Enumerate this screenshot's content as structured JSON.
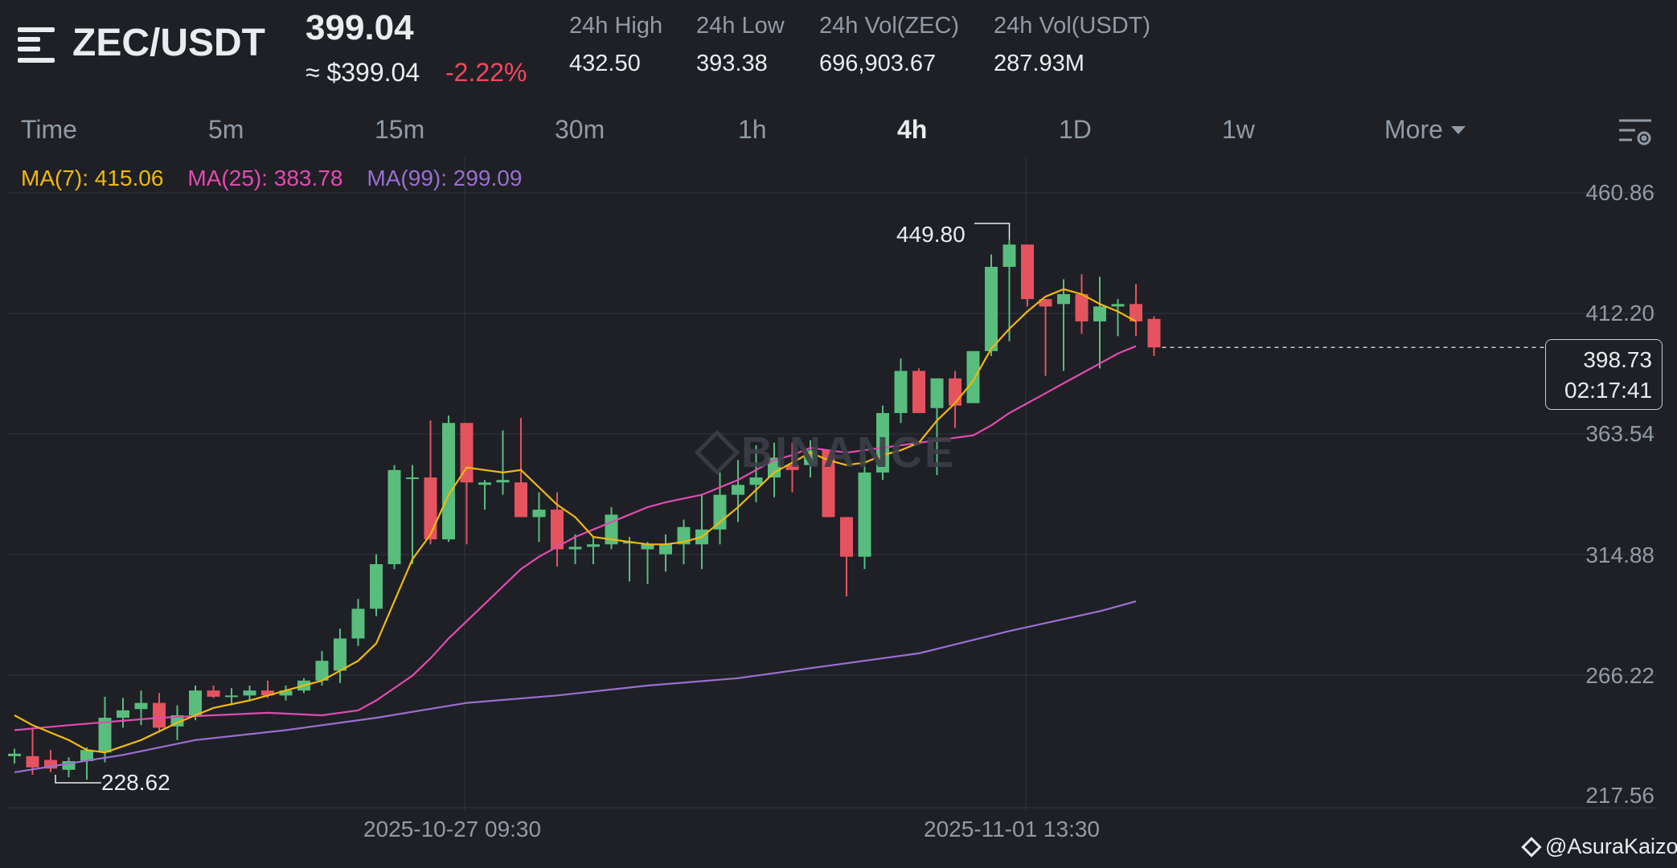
{
  "header": {
    "pair": "ZEC/USDT",
    "last_price": "399.04",
    "usd_price": "≈ $399.04",
    "change": "-2.22%",
    "stats": [
      {
        "label": "24h High",
        "value": "432.50"
      },
      {
        "label": "24h Low",
        "value": "393.38"
      },
      {
        "label": "24h Vol(ZEC)",
        "value": "696,903.67"
      },
      {
        "label": "24h Vol(USDT)",
        "value": "287.93M"
      }
    ]
  },
  "intervals": [
    "Time",
    "5m",
    "15m",
    "30m",
    "1h",
    "4h",
    "1D",
    "1w"
  ],
  "active_interval": "4h",
  "more_label": "More",
  "indicators": {
    "ma7": "MA(7): 415.06",
    "ma25": "MA(25): 383.78",
    "ma99": "MA(99): 299.09"
  },
  "price_axis": [
    "460.86",
    "412.20",
    "363.54",
    "314.88",
    "266.22",
    "217.56"
  ],
  "time_axis": [
    "2025-10-27 09:30",
    "2025-11-01 13:30"
  ],
  "last_marker": {
    "price": "398.73",
    "countdown": "02:17:41"
  },
  "high_label": "449.80",
  "low_label": "228.62",
  "watermark": "BINANCE",
  "credit": "@AsuraKaizo",
  "colors": {
    "up": "#58bd7d",
    "down": "#e5535f",
    "ma7": "#f0b90b",
    "ma25": "#e24bb0",
    "ma99": "#9a6fd1",
    "background": "#1e2026"
  },
  "chart_data": {
    "type": "candlestick",
    "interval": "4h",
    "ylim": [
      217.56,
      460.86
    ],
    "candles": [
      [
        233.5,
        236.5,
        230.5,
        234.5
      ],
      [
        233.5,
        244.5,
        226.0,
        229.0
      ],
      [
        232.0,
        236.0,
        227.0,
        228.5
      ],
      [
        228.0,
        233.0,
        225.0,
        231.5
      ],
      [
        231.5,
        237.0,
        224.0,
        236.0
      ],
      [
        235.0,
        257.5,
        231.0,
        249.0
      ],
      [
        249.0,
        257.0,
        245.0,
        252.0
      ],
      [
        252.5,
        260.0,
        246.0,
        255.0
      ],
      [
        255.0,
        259.0,
        243.0,
        245.0
      ],
      [
        245.5,
        254.0,
        240.0,
        250.0
      ],
      [
        250.0,
        262.0,
        248.0,
        260.0
      ],
      [
        260.0,
        262.0,
        257.0,
        257.5
      ],
      [
        257.5,
        261.0,
        254.0,
        258.0
      ],
      [
        258.0,
        262.0,
        256.0,
        260.0
      ],
      [
        260.0,
        264.0,
        257.0,
        258.0
      ],
      [
        258.0,
        262.0,
        256.0,
        260.0
      ],
      [
        260.0,
        265.0,
        259.0,
        264.0
      ],
      [
        264.0,
        276.0,
        262.0,
        272.0
      ],
      [
        268.0,
        285.0,
        263.0,
        281.0
      ],
      [
        281.0,
        297.0,
        278.0,
        293.0
      ],
      [
        293.0,
        315.0,
        290.0,
        311.0
      ],
      [
        311.0,
        351.0,
        309.0,
        349.0
      ],
      [
        346.0,
        351.0,
        311.0,
        346.0
      ],
      [
        346.0,
        369.0,
        319.0,
        321.0
      ],
      [
        321.0,
        371.0,
        320.0,
        368.0
      ],
      [
        368.0,
        368.0,
        319.0,
        344.0
      ],
      [
        343.0,
        345.0,
        333.0,
        344.0
      ],
      [
        344.0,
        365.0,
        339.0,
        345.0
      ],
      [
        344.0,
        370.0,
        330.0,
        330.0
      ],
      [
        330.0,
        340.0,
        320.0,
        333.0
      ],
      [
        333.0,
        340.0,
        310.0,
        317.0
      ],
      [
        317.0,
        323.0,
        311.0,
        318.0
      ],
      [
        318.0,
        322.0,
        311.0,
        319.0
      ],
      [
        319.0,
        334.0,
        317.0,
        331.0
      ],
      [
        320.0,
        322.0,
        304.0,
        320.0
      ],
      [
        317.0,
        320.0,
        303.0,
        319.0
      ],
      [
        315.0,
        323.0,
        308.0,
        319.0
      ],
      [
        319.0,
        329.0,
        311.0,
        326.0
      ],
      [
        319.0,
        339.0,
        309.0,
        325.0
      ],
      [
        325.0,
        348.0,
        319.0,
        339.0
      ],
      [
        339.0,
        353.0,
        328.0,
        343.0
      ],
      [
        343.0,
        359.0,
        336.0,
        346.0
      ],
      [
        346.0,
        360.0,
        338.0,
        354.0
      ],
      [
        351.0,
        360.0,
        340.0,
        349.0
      ],
      [
        351.0,
        361.0,
        346.0,
        357.0
      ],
      [
        357.0,
        356.0,
        330.0,
        330.0
      ],
      [
        330.0,
        330.0,
        298.0,
        314.0
      ],
      [
        314.0,
        355.0,
        309.0,
        348.0
      ],
      [
        348.0,
        375.0,
        345.0,
        372.0
      ],
      [
        372.0,
        394.0,
        368.0,
        389.0
      ],
      [
        389.0,
        390.0,
        372.0,
        372.0
      ],
      [
        374.0,
        386.0,
        347.0,
        386.0
      ],
      [
        386.0,
        389.0,
        366.0,
        375.0
      ],
      [
        376.0,
        397.0,
        376.0,
        397.0
      ],
      [
        397.0,
        436.0,
        395.0,
        431.0
      ],
      [
        431.0,
        442.0,
        401.0,
        440.0
      ],
      [
        440.0,
        440.0,
        415.0,
        418.0
      ],
      [
        418.0,
        418.0,
        387.0,
        415.0
      ],
      [
        416.0,
        426.0,
        389.0,
        420.0
      ],
      [
        420.0,
        428.0,
        404.0,
        409.0
      ],
      [
        409.0,
        427.0,
        390.0,
        415.0
      ],
      [
        415.0,
        418.0,
        403.0,
        416.0
      ],
      [
        416.0,
        424.0,
        403.0,
        409.0
      ],
      [
        410.0,
        411.0,
        395.0,
        398.5
      ]
    ],
    "ma7": [
      [
        0,
        250
      ],
      [
        1,
        246
      ],
      [
        3,
        240
      ],
      [
        4,
        236
      ],
      [
        5,
        235
      ],
      [
        7,
        240
      ],
      [
        9,
        247
      ],
      [
        11,
        253
      ],
      [
        13,
        256
      ],
      [
        15,
        260
      ],
      [
        17,
        264
      ],
      [
        19,
        272
      ],
      [
        20,
        279
      ],
      [
        21,
        296
      ],
      [
        22,
        313
      ],
      [
        23,
        323
      ],
      [
        24,
        339
      ],
      [
        25,
        350
      ],
      [
        26,
        349
      ],
      [
        27,
        348
      ],
      [
        28,
        349
      ],
      [
        29,
        342
      ],
      [
        30,
        335
      ],
      [
        31,
        330
      ],
      [
        32,
        322
      ],
      [
        34,
        320
      ],
      [
        35,
        319
      ],
      [
        36,
        319
      ],
      [
        37,
        320
      ],
      [
        38,
        322
      ],
      [
        39,
        328
      ],
      [
        40,
        334
      ],
      [
        41,
        341
      ],
      [
        42,
        348
      ],
      [
        43,
        352
      ],
      [
        44,
        356
      ],
      [
        45,
        353
      ],
      [
        46,
        351
      ],
      [
        47,
        352
      ],
      [
        48,
        355
      ],
      [
        49,
        357
      ],
      [
        50,
        360
      ],
      [
        51,
        369
      ],
      [
        52,
        376
      ],
      [
        53,
        385
      ],
      [
        54,
        398
      ],
      [
        55,
        406
      ],
      [
        56,
        413
      ],
      [
        57,
        419
      ],
      [
        58,
        422
      ],
      [
        59,
        420
      ],
      [
        60,
        416
      ],
      [
        61,
        413
      ],
      [
        62,
        409
      ]
    ],
    "ma25": [
      [
        0,
        244
      ],
      [
        3,
        246
      ],
      [
        8,
        249
      ],
      [
        11,
        250
      ],
      [
        14,
        251
      ],
      [
        17,
        250
      ],
      [
        19,
        252
      ],
      [
        20,
        256
      ],
      [
        21,
        261
      ],
      [
        22,
        266
      ],
      [
        23,
        273
      ],
      [
        24,
        281
      ],
      [
        25,
        288
      ],
      [
        26,
        295
      ],
      [
        27,
        302
      ],
      [
        28,
        309
      ],
      [
        29,
        314
      ],
      [
        30,
        318
      ],
      [
        31,
        322
      ],
      [
        32,
        325
      ],
      [
        33,
        328
      ],
      [
        34,
        331
      ],
      [
        35,
        334
      ],
      [
        36,
        336
      ],
      [
        38,
        339
      ],
      [
        39,
        342
      ],
      [
        40,
        345
      ],
      [
        41,
        349
      ],
      [
        42,
        353
      ],
      [
        43,
        355
      ],
      [
        44,
        358
      ],
      [
        45,
        357
      ],
      [
        46,
        356
      ],
      [
        47,
        357
      ],
      [
        49,
        359
      ],
      [
        51,
        361
      ],
      [
        52,
        362
      ],
      [
        53,
        363
      ],
      [
        54,
        367
      ],
      [
        55,
        372
      ],
      [
        56,
        376
      ],
      [
        57,
        380
      ],
      [
        58,
        384
      ],
      [
        59,
        388
      ],
      [
        60,
        392
      ],
      [
        61,
        396
      ],
      [
        62,
        399
      ]
    ],
    "ma99": [
      [
        0,
        227
      ],
      [
        6,
        234
      ],
      [
        10,
        240
      ],
      [
        15,
        244
      ],
      [
        20,
        249
      ],
      [
        25,
        255
      ],
      [
        30,
        258
      ],
      [
        35,
        262
      ],
      [
        40,
        265
      ],
      [
        45,
        270
      ],
      [
        50,
        275
      ],
      [
        55,
        284
      ],
      [
        60,
        292
      ],
      [
        62,
        296
      ]
    ]
  }
}
